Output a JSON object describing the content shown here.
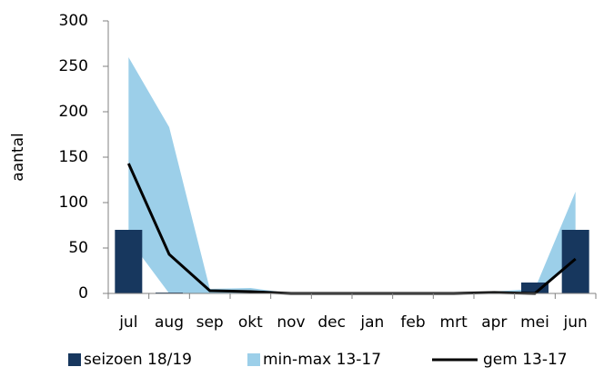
{
  "chart_data": {
    "type": "bar-area-line",
    "y_label": "aantal",
    "categories": [
      "jul",
      "aug",
      "sep",
      "okt",
      "nov",
      "dec",
      "jan",
      "feb",
      "mrt",
      "apr",
      "mei",
      "jun"
    ],
    "ylim": [
      0,
      300
    ],
    "yticks": [
      0,
      50,
      100,
      150,
      200,
      250,
      300
    ],
    "series": [
      {
        "name": "seizoen 18/19",
        "kind": "bar",
        "color": "#17375e",
        "values": [
          70,
          1,
          0,
          0,
          0,
          0,
          0,
          0,
          0,
          0,
          12,
          70
        ]
      },
      {
        "name": "min-max 13-17",
        "kind": "range",
        "color": "#9ccfe9",
        "low": [
          60,
          0,
          0,
          0,
          0,
          0,
          0,
          0,
          0,
          0,
          0,
          40
        ],
        "high": [
          260,
          183,
          5,
          6,
          0,
          0,
          0,
          0,
          0,
          2,
          5,
          112
        ]
      },
      {
        "name": "gem 13-17",
        "kind": "line",
        "color": "#000000",
        "values": [
          143,
          43,
          3,
          2,
          0,
          0,
          0,
          0,
          0,
          1,
          0,
          38
        ]
      }
    ]
  }
}
